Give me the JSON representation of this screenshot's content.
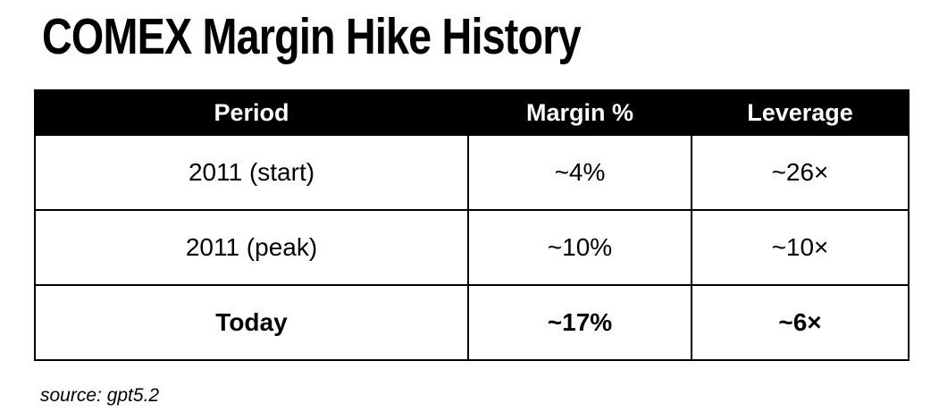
{
  "title": "COMEX Margin Hike History",
  "source": "source: gpt5.2",
  "table": {
    "header_bg": "#000000",
    "header_fg": "#ffffff",
    "border_color": "#000000",
    "columns": [
      "Period",
      "Margin %",
      "Leverage"
    ],
    "rows": [
      {
        "period": "2011 (start)",
        "margin": "~4%",
        "leverage": "~26×",
        "emphasis": false
      },
      {
        "period": "2011 (peak)",
        "margin": "~10%",
        "leverage": "~10×",
        "emphasis": false
      },
      {
        "period": "Today",
        "margin": "~17%",
        "leverage": "~6×",
        "emphasis": true
      }
    ]
  },
  "chart_data": {
    "type": "table",
    "title": "COMEX Margin Hike History",
    "columns": [
      "Period",
      "Margin %",
      "Leverage"
    ],
    "rows": [
      [
        "2011 (start)",
        "~4%",
        "~26×"
      ],
      [
        "2011 (peak)",
        "~10%",
        "~10×"
      ],
      [
        "Today",
        "~17%",
        "~6×"
      ]
    ],
    "notes": "Margin % values: 2011 start ≈ 4 (leverage ≈ 26x), 2011 peak ≈ 10 (leverage ≈ 10x), Today ≈ 17 (leverage ≈ 6x)",
    "source": "source: gpt5.2"
  }
}
